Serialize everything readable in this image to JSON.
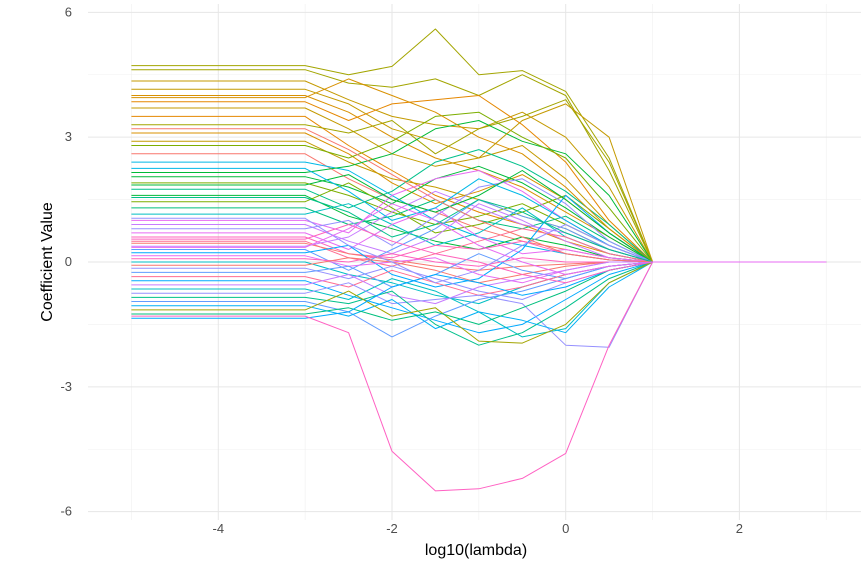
{
  "chart_data": {
    "type": "line",
    "title": "",
    "xlabel": "log10(lambda)",
    "ylabel": "Coefficient Value",
    "xlim": [
      -5.5,
      3.4
    ],
    "ylim": [
      -6.2,
      6.2
    ],
    "x_ticks": [
      -4,
      -2,
      0,
      2
    ],
    "x_tick_labels": [
      "-4",
      "-2",
      "0",
      "2"
    ],
    "y_ticks": [
      -6,
      -3,
      0,
      3,
      6
    ],
    "y_tick_labels": [
      "-6",
      "-3",
      "0",
      "3",
      "6"
    ],
    "grid": true,
    "legend": "none",
    "x": [
      -5,
      -4,
      -3,
      -2.5,
      -2,
      -1.5,
      -1,
      -0.5,
      0,
      0.5,
      1,
      2,
      3
    ],
    "series": [
      {
        "color": "#A3A500",
        "values": [
          4.72,
          4.72,
          4.72,
          4.5,
          4.7,
          5.6,
          4.5,
          4.6,
          4.1,
          2.5,
          0,
          0,
          0
        ]
      },
      {
        "color": "#A3A500",
        "values": [
          4.62,
          4.62,
          4.62,
          4.3,
          4.2,
          4.4,
          4.0,
          4.5,
          4.0,
          2.2,
          0,
          0,
          0
        ]
      },
      {
        "color": "#C49A00",
        "values": [
          4.35,
          4.35,
          4.35,
          3.9,
          3.5,
          3.3,
          3.2,
          3.6,
          3.0,
          1.8,
          0,
          0,
          0
        ]
      },
      {
        "color": "#D89000",
        "values": [
          4.0,
          4.0,
          4.0,
          3.6,
          3.0,
          2.5,
          2.2,
          1.8,
          1.2,
          0.6,
          0,
          0,
          0
        ]
      },
      {
        "color": "#E58700",
        "values": [
          3.85,
          3.85,
          3.85,
          3.4,
          3.8,
          3.9,
          4.0,
          3.3,
          2.4,
          1.0,
          0,
          0,
          0
        ]
      },
      {
        "color": "#C49A00",
        "values": [
          3.7,
          3.7,
          3.7,
          3.2,
          2.6,
          2.3,
          2.5,
          2.8,
          2.0,
          0.9,
          0,
          0,
          0
        ]
      },
      {
        "color": "#E58700",
        "values": [
          3.5,
          3.5,
          3.5,
          2.8,
          2.2,
          1.6,
          1.2,
          0.9,
          0.5,
          0.2,
          0,
          0,
          0
        ]
      },
      {
        "color": "#A3A500",
        "values": [
          3.3,
          3.3,
          3.3,
          3.1,
          3.4,
          2.6,
          3.2,
          3.5,
          3.9,
          2.4,
          0,
          0,
          0
        ]
      },
      {
        "color": "#D89000",
        "values": [
          3.1,
          3.1,
          3.1,
          2.6,
          1.9,
          1.4,
          1.7,
          2.1,
          1.5,
          0.7,
          0,
          0,
          0
        ]
      },
      {
        "color": "#C49A00",
        "values": [
          2.9,
          2.9,
          2.9,
          2.4,
          2.0,
          1.8,
          1.5,
          1.1,
          0.8,
          0.3,
          0,
          0,
          0
        ]
      },
      {
        "color": "#F8766D",
        "values": [
          2.6,
          2.6,
          2.6,
          2.0,
          1.5,
          1.2,
          0.8,
          0.5,
          0.3,
          0.1,
          0,
          0,
          0
        ]
      },
      {
        "color": "#00B8E7",
        "values": [
          2.4,
          2.4,
          2.4,
          2.2,
          1.6,
          1.0,
          0.6,
          0.4,
          0.2,
          0.05,
          0,
          0,
          0
        ]
      },
      {
        "color": "#00BA38",
        "values": [
          2.15,
          2.15,
          2.15,
          2.3,
          2.6,
          3.2,
          3.4,
          2.9,
          2.6,
          1.6,
          0,
          0,
          0
        ]
      },
      {
        "color": "#00BA38",
        "values": [
          2.05,
          2.05,
          2.05,
          1.8,
          1.4,
          2.0,
          2.3,
          1.9,
          1.3,
          0.6,
          0,
          0,
          0
        ]
      },
      {
        "color": "#7CAE00",
        "values": [
          1.9,
          1.9,
          1.9,
          1.6,
          1.2,
          0.9,
          1.1,
          1.4,
          0.9,
          0.4,
          0,
          0,
          0
        ]
      },
      {
        "color": "#00C08B",
        "values": [
          1.75,
          1.75,
          1.75,
          1.3,
          1.7,
          2.4,
          2.7,
          2.3,
          1.7,
          0.9,
          0,
          0,
          0
        ]
      },
      {
        "color": "#00BA38",
        "values": [
          1.6,
          1.6,
          1.6,
          1.1,
          0.8,
          0.5,
          0.3,
          0.6,
          0.4,
          0.1,
          0,
          0,
          0
        ]
      },
      {
        "color": "#7CAE00",
        "values": [
          1.45,
          1.45,
          1.45,
          1.9,
          1.3,
          0.7,
          0.9,
          1.2,
          1.6,
          0.8,
          0,
          0,
          0
        ]
      },
      {
        "color": "#00BF7D",
        "values": [
          1.3,
          1.3,
          1.3,
          0.9,
          1.1,
          1.5,
          1.0,
          0.8,
          1.1,
          0.5,
          0,
          0,
          0
        ]
      },
      {
        "color": "#00BFC4",
        "values": [
          1.15,
          1.15,
          1.15,
          1.4,
          0.9,
          0.4,
          0.7,
          1.3,
          0.6,
          0.2,
          0,
          0,
          0
        ]
      },
      {
        "color": "#E76BF3",
        "values": [
          1.0,
          1.0,
          1.0,
          0.7,
          1.6,
          2.0,
          2.2,
          1.7,
          1.0,
          0.4,
          0,
          0,
          0
        ]
      },
      {
        "color": "#C77CFF",
        "values": [
          0.9,
          0.9,
          0.9,
          0.5,
          0.2,
          0.6,
          1.4,
          1.0,
          0.5,
          0.1,
          0,
          0,
          0
        ]
      },
      {
        "color": "#9590FF",
        "values": [
          0.8,
          0.8,
          0.8,
          1.0,
          0.4,
          1.1,
          1.8,
          2.0,
          1.4,
          0.5,
          0,
          0,
          0
        ]
      },
      {
        "color": "#E76BF3",
        "values": [
          0.7,
          0.7,
          0.7,
          0.3,
          0.9,
          1.3,
          0.6,
          0.2,
          0.3,
          0.1,
          0,
          0,
          0
        ]
      },
      {
        "color": "#FF62BC",
        "values": [
          0.6,
          0.6,
          0.6,
          0.2,
          0.1,
          0.4,
          0.3,
          0.5,
          0.2,
          0.05,
          0,
          0,
          0
        ]
      },
      {
        "color": "#FF6C91",
        "values": [
          0.5,
          0.5,
          0.5,
          0.1,
          -0.1,
          0.2,
          0.5,
          0.8,
          0.6,
          0.2,
          0,
          0,
          0
        ]
      },
      {
        "color": "#F8766D",
        "values": [
          0.45,
          0.45,
          0.45,
          0.2,
          0.05,
          -0.1,
          -0.2,
          -0.1,
          -0.05,
          0,
          0,
          0,
          0
        ]
      },
      {
        "color": "#C77CFF",
        "values": [
          0.38,
          0.38,
          0.38,
          0.6,
          1.2,
          1.7,
          1.3,
          0.9,
          0.7,
          0.3,
          0,
          0,
          0
        ]
      },
      {
        "color": "#619CFF",
        "values": [
          0.3,
          0.3,
          0.3,
          -0.2,
          0.3,
          0.8,
          1.5,
          1.1,
          0.8,
          0.3,
          0,
          0,
          0
        ]
      },
      {
        "color": "#00A9FF",
        "values": [
          0.22,
          0.22,
          0.22,
          0.4,
          -0.3,
          -0.6,
          -0.4,
          0.3,
          1.6,
          0.7,
          0,
          0,
          0
        ]
      },
      {
        "color": "#E76BF3",
        "values": [
          0.15,
          0.15,
          0.15,
          -0.1,
          0.0,
          0.1,
          -0.3,
          -0.5,
          -0.2,
          0.0,
          0,
          0,
          0
        ]
      },
      {
        "color": "#FF62BC",
        "values": [
          0.08,
          0.08,
          0.08,
          0.0,
          0.2,
          0.0,
          -0.1,
          0.1,
          0.0,
          0.0,
          0,
          0,
          0
        ]
      },
      {
        "color": "#00BFC4",
        "values": [
          0.0,
          0.0,
          0.0,
          -0.3,
          -0.5,
          -0.8,
          -1.0,
          -0.6,
          -0.3,
          -0.1,
          0,
          0,
          0
        ]
      },
      {
        "color": "#F8766D",
        "values": [
          -0.08,
          -0.08,
          -0.08,
          0.1,
          0.0,
          -0.2,
          -0.5,
          -0.3,
          -0.1,
          0.0,
          0,
          0,
          0
        ]
      },
      {
        "color": "#9590FF",
        "values": [
          -0.15,
          -0.15,
          -0.15,
          -0.4,
          -0.1,
          -0.4,
          -0.7,
          -0.9,
          -0.5,
          -0.2,
          0,
          0,
          0
        ]
      },
      {
        "color": "#619CFF",
        "values": [
          -0.25,
          -0.25,
          -0.25,
          -0.1,
          -0.6,
          -0.3,
          0.2,
          -0.2,
          -0.4,
          -0.1,
          0,
          0,
          0
        ]
      },
      {
        "color": "#FF6C91",
        "values": [
          -0.35,
          -0.35,
          -0.35,
          -0.6,
          -0.2,
          -0.5,
          -0.8,
          -0.6,
          -0.3,
          -0.1,
          0,
          0,
          0
        ]
      },
      {
        "color": "#00A9FF",
        "values": [
          -0.45,
          -0.45,
          -0.45,
          -0.8,
          -1.1,
          -1.4,
          -1.7,
          -1.5,
          -0.9,
          -0.3,
          0,
          0,
          0
        ]
      },
      {
        "color": "#C77CFF",
        "values": [
          -0.55,
          -0.55,
          -0.55,
          -0.3,
          -0.8,
          -1.0,
          -0.6,
          -0.4,
          -0.2,
          0.0,
          0,
          0,
          0
        ]
      },
      {
        "color": "#00BFC4",
        "values": [
          -0.65,
          -0.65,
          -0.65,
          -0.9,
          -0.4,
          -0.7,
          -1.2,
          -1.8,
          -1.6,
          -0.5,
          0,
          0,
          0
        ]
      },
      {
        "color": "#9590FF",
        "values": [
          -0.75,
          -0.75,
          -0.75,
          -0.5,
          -1.0,
          -0.9,
          -0.8,
          -1.0,
          -2.0,
          -2.05,
          0,
          0,
          0
        ]
      },
      {
        "color": "#00C08B",
        "values": [
          -0.85,
          -0.85,
          -0.85,
          -1.0,
          -0.7,
          -1.5,
          -2.0,
          -1.7,
          -1.1,
          -0.4,
          0,
          0,
          0
        ]
      },
      {
        "color": "#619CFF",
        "values": [
          -0.95,
          -0.95,
          -0.95,
          -1.2,
          -1.8,
          -1.3,
          -0.9,
          -0.7,
          -0.4,
          -0.1,
          0,
          0,
          0
        ]
      },
      {
        "color": "#00B0F6",
        "values": [
          -1.05,
          -1.05,
          -1.05,
          -1.3,
          -0.9,
          -1.6,
          -1.2,
          -1.4,
          -1.7,
          -0.6,
          0,
          0,
          0
        ]
      },
      {
        "color": "#A3A500",
        "values": [
          -1.15,
          -1.15,
          -1.15,
          -0.7,
          -1.3,
          -1.1,
          -1.9,
          -1.95,
          -1.5,
          -0.5,
          0,
          0,
          0
        ]
      },
      {
        "color": "#00BF7D",
        "values": [
          -1.25,
          -1.25,
          -1.25,
          -1.1,
          -1.4,
          -1.2,
          -1.5,
          -1.1,
          -0.7,
          -0.2,
          0,
          0,
          0
        ]
      },
      {
        "color": "#00A9FF",
        "values": [
          -1.35,
          -1.35,
          -1.35,
          -1.2,
          -0.6,
          -0.3,
          -0.5,
          -0.8,
          -0.6,
          -0.2,
          0,
          0,
          0
        ]
      },
      {
        "color": "#FF61C3",
        "values": [
          -1.3,
          -1.3,
          -1.3,
          -1.7,
          -4.55,
          -5.5,
          -5.45,
          -5.2,
          -4.6,
          -2.0,
          0,
          0,
          0
        ]
      },
      {
        "color": "#7CAE00",
        "values": [
          2.8,
          2.8,
          2.8,
          2.5,
          2.9,
          3.5,
          3.6,
          3.0,
          2.5,
          1.3,
          0,
          0,
          0
        ]
      },
      {
        "color": "#D89000",
        "values": [
          3.95,
          3.95,
          3.95,
          4.4,
          4.0,
          3.6,
          3.0,
          2.6,
          1.8,
          0.8,
          0,
          0,
          0
        ]
      },
      {
        "color": "#00BA38",
        "values": [
          1.85,
          1.85,
          1.85,
          2.1,
          1.5,
          1.2,
          1.6,
          2.2,
          1.5,
          0.7,
          0,
          0,
          0
        ]
      },
      {
        "color": "#00B8E7",
        "values": [
          2.25,
          2.25,
          2.25,
          1.7,
          1.0,
          1.3,
          2.0,
          1.6,
          1.0,
          0.4,
          0,
          0,
          0
        ]
      },
      {
        "color": "#C49A00",
        "values": [
          4.15,
          4.15,
          4.15,
          3.8,
          3.2,
          2.9,
          2.5,
          3.4,
          3.8,
          3.0,
          0,
          0,
          0
        ]
      },
      {
        "color": "#FF62BC",
        "values": [
          0.55,
          0.55,
          0.55,
          0.9,
          0.5,
          0.2,
          0.0,
          -0.3,
          -0.5,
          -0.2,
          0,
          0,
          0
        ]
      },
      {
        "color": "#9590FF",
        "values": [
          1.05,
          1.05,
          1.05,
          0.4,
          0.0,
          -0.5,
          -0.2,
          0.4,
          0.9,
          0.4,
          0,
          0,
          0
        ]
      },
      {
        "color": "#00C08B",
        "values": [
          1.55,
          1.55,
          1.55,
          1.2,
          0.6,
          0.9,
          1.5,
          1.2,
          0.7,
          0.3,
          0,
          0,
          0
        ]
      },
      {
        "color": "#F8766D",
        "values": [
          3.2,
          3.2,
          3.2,
          2.7,
          2.1,
          1.5,
          1.0,
          0.6,
          0.2,
          0.05,
          0,
          0,
          0
        ]
      },
      {
        "color": "#E76BF3",
        "values": [
          0.35,
          0.35,
          0.35,
          0.8,
          1.4,
          1.0,
          0.4,
          0.0,
          -0.3,
          -0.1,
          0,
          0,
          0
        ]
      }
    ]
  }
}
